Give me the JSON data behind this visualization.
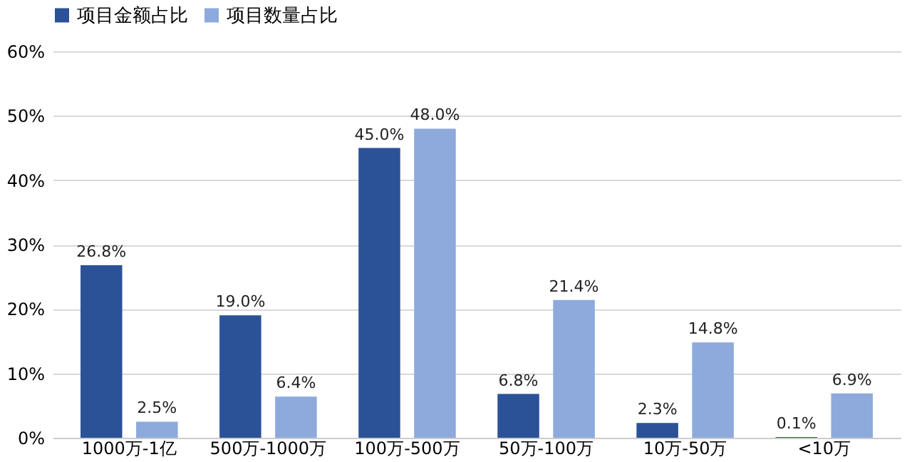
{
  "chart_data": {
    "type": "bar",
    "categories": [
      "1000万-1亿",
      "500万-1000万",
      "100万-500万",
      "50万-100万",
      "10万-50万",
      "<10万"
    ],
    "series": [
      {
        "name": "项目金额占比",
        "color": "#2b5297",
        "values": [
          26.8,
          19.0,
          45.0,
          6.8,
          2.3,
          0.1
        ],
        "value_labels": [
          "26.8%",
          "19.0%",
          "45.0%",
          "6.8%",
          "2.3%",
          "0.1%"
        ]
      },
      {
        "name": "项目数量占比",
        "color": "#8eaadc",
        "values": [
          2.5,
          6.4,
          48.0,
          21.4,
          14.8,
          6.9
        ],
        "value_labels": [
          "2.5%",
          "6.4%",
          "48.0%",
          "21.4%",
          "14.8%",
          "6.9%"
        ]
      }
    ],
    "ylim": [
      0,
      60
    ],
    "yticks": [
      {
        "value": 0,
        "label": "0%"
      },
      {
        "value": 10,
        "label": "10%"
      },
      {
        "value": 20,
        "label": "20%"
      },
      {
        "value": 30,
        "label": "30%"
      },
      {
        "value": 40,
        "label": "40%"
      },
      {
        "value": 50,
        "label": "50%"
      },
      {
        "value": 60,
        "label": "60%"
      }
    ],
    "grid": "y",
    "legend": "top"
  }
}
